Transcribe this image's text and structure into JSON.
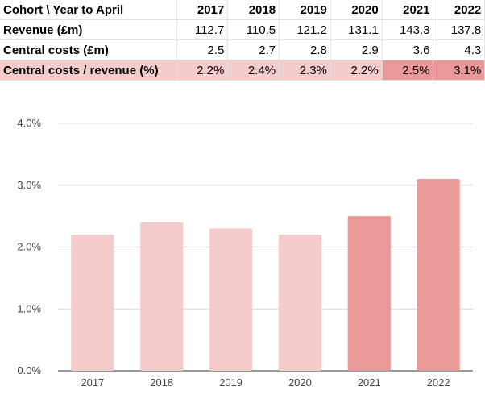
{
  "table": {
    "header_label": "Cohort \\ Year to April",
    "years": [
      "2017",
      "2018",
      "2019",
      "2020",
      "2021",
      "2022"
    ],
    "rows": [
      {
        "label": "Revenue (£m)",
        "values": [
          "112.7",
          "110.5",
          "121.2",
          "131.1",
          "143.3",
          "137.8"
        ]
      },
      {
        "label": "Central costs (£m)",
        "values": [
          "2.5",
          "2.7",
          "2.8",
          "2.9",
          "3.6",
          "4.3"
        ]
      },
      {
        "label": "Central costs / revenue (%)",
        "values": [
          "2.2%",
          "2.4%",
          "2.3%",
          "2.2%",
          "2.5%",
          "3.1%"
        ],
        "row_color": "#f4cccc",
        "highlight_color": "#ea9999",
        "highlight_indices": [
          4,
          5
        ]
      }
    ]
  },
  "chart_data": {
    "type": "bar",
    "categories": [
      "2017",
      "2018",
      "2019",
      "2020",
      "2021",
      "2022"
    ],
    "values": [
      2.2,
      2.4,
      2.3,
      2.2,
      2.5,
      3.1
    ],
    "ylim": [
      0,
      4
    ],
    "yticks": [
      0,
      1,
      2,
      3,
      4
    ],
    "ytick_labels": [
      "0.0%",
      "1.0%",
      "2.0%",
      "3.0%",
      "4.0%"
    ],
    "grid": true,
    "colors": {
      "light": "#f4cccc",
      "dark": "#ea9999",
      "dark_indices": [
        4,
        5
      ]
    }
  }
}
